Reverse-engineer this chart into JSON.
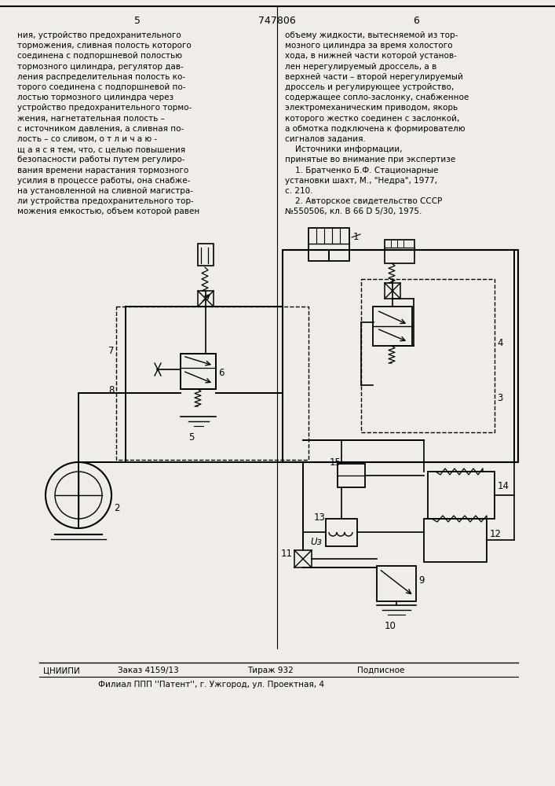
{
  "bg_color": "#f0ede8",
  "page_width": 7.07,
  "page_height": 10.0,
  "header_num": "747806",
  "col_left": "5",
  "col_right": "6",
  "text_left": "ния, устройство предохранительного\nторможения, сливная полость которого\nсоединена с подпоршневой полостью\nтормозного цилиндра, регулятор дав-\nления распределительная полость ко-\nторого соединена с подпоршневой по-\nлостью тормозного цилиндра через\nустройство предохранительного тормо-\nжения, нагнетательная полость –\nс источником давления, а сливная по-\nлость – со сливом, о т л и ч а ю -\nщ а я с я тем, что, с целью повышения\nбезопасности работы путем регулиро-\nвания времени нарастания тормозного\nусилия в процессе работы, она снабже-\nна установленной на сливной магистра-\nли устройства предохранительного тор-\nможения емкостью, объем которой равен",
  "text_right": "объему жидкости, вытесняемой из тор-\nмозного цилиндра за время холостого\nхода, в нижней части которой установ-\nлен нерегулируемый дроссель, а в\nверхней части – второй нерегулируемый\nдроссель и регулирующее устройство,\nсодержащее сопло-заслонку, снабженное\nэлектромеханическим приводом, якорь\nкоторого жестко соединен с заслонкой,\nа обмотка подключена к формирователю\nсигналов задания.\n    Источники информации,\nпринятые во внимание при экспертизе\n    1. Братченко Б.Ф. Стационарные\nустановки шахт, М., \"Недра\", 1977,\nс. 210.\n    2. Авторское свидетельство СССР\n№550506, кл. В 66 D 5/30, 1975.",
  "footer_org": "ЦНИИПИ",
  "footer_order": "Заказ 4159/13",
  "footer_tirazh": "Тираж 932",
  "footer_podp": "Подписное",
  "footer_filial": "Филиал ППП ''Патент'', г. Ужгород, ул. Проектная, 4"
}
